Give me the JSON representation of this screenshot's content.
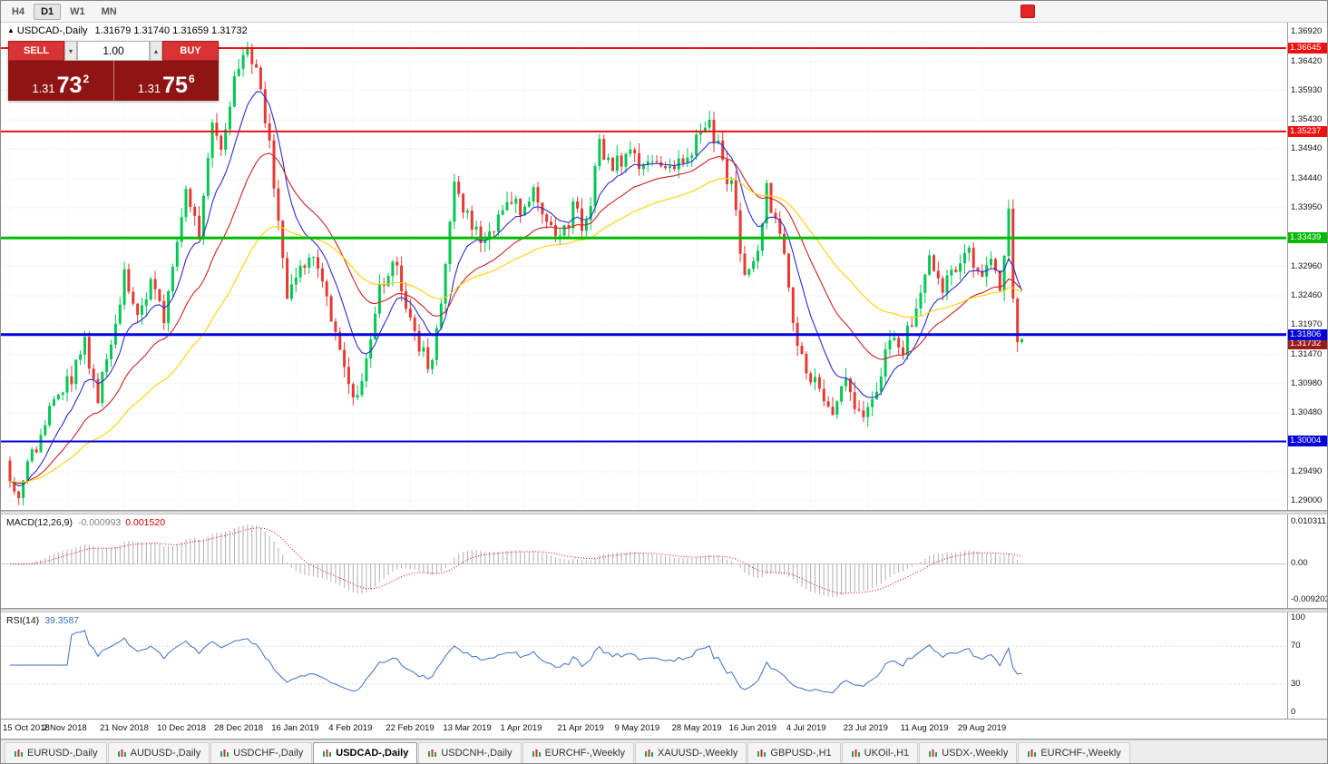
{
  "toolbar": {
    "timeframes": [
      {
        "label": "H4",
        "active": false
      },
      {
        "label": "D1",
        "active": true
      },
      {
        "label": "W1",
        "active": false
      },
      {
        "label": "MN",
        "active": false
      }
    ]
  },
  "icons": {
    "collapse_marker": "▲",
    "spin_up": "▴",
    "spin_down": "▾"
  },
  "chart_header": {
    "marker": "▲",
    "symbol": "USDCAD-,Daily",
    "ohlc": "1.31679 1.31740 1.31659 1.31732"
  },
  "trade_panel": {
    "sell_label": "SELL",
    "buy_label": "BUY",
    "volume": "1.00",
    "sell_price_prefix": "1.31",
    "sell_price_big": "73",
    "sell_price_sup": "2",
    "buy_price_prefix": "1.31",
    "buy_price_big": "75",
    "buy_price_sup": "6"
  },
  "chart_data": {
    "type": "candlestick",
    "symbol": "USDCAD-",
    "timeframe": "Daily",
    "last_ohlc": {
      "open": 1.31679,
      "high": 1.3174,
      "low": 1.31659,
      "close": 1.31732
    },
    "visible_range": {
      "max": 1.3692,
      "min": 1.29
    },
    "price_axis_ticks": [
      "1.36920",
      "1.36420",
      "1.35930",
      "1.35430",
      "1.34940",
      "1.34440",
      "1.33950",
      "1.33450",
      "1.32960",
      "1.32460",
      "1.31970",
      "1.31470",
      "1.30980",
      "1.30480",
      "1.29990",
      "1.29490",
      "1.29000"
    ],
    "horizontal_lines": [
      {
        "price": 1.36645,
        "label": "1.36645",
        "color": "#ee1111",
        "width": 2
      },
      {
        "price": 1.35237,
        "label": "1.35237",
        "color": "#ee1111",
        "width": 2
      },
      {
        "price": 1.33439,
        "label": "1.33439",
        "color": "#00bb00",
        "width": 3
      },
      {
        "price": 1.31806,
        "label": "1.31806",
        "color": "#0000dd",
        "width": 3
      },
      {
        "price": 1.30004,
        "label": "1.30004",
        "color": "#0000dd",
        "width": 2
      }
    ],
    "current_price": {
      "value": 1.31732,
      "label": "1.31732",
      "color": "#9b1b1b"
    },
    "x_labels": [
      "15 Oct 2018",
      "2 Nov 2018",
      "21 Nov 2018",
      "10 Dec 2018",
      "28 Dec 2018",
      "16 Jan 2019",
      "4 Feb 2019",
      "22 Feb 2019",
      "13 Mar 2019",
      "1 Apr 2019",
      "21 Apr 2019",
      "9 May 2019",
      "28 May 2019",
      "16 Jun 2019",
      "4 Jul 2019",
      "23 Jul 2019",
      "11 Aug 2019",
      "29 Aug 2019"
    ],
    "candles_per_label": 13,
    "num_candles": 231,
    "up_color": "#00c853",
    "down_color": "#e53935",
    "moving_averages": [
      {
        "period": 10,
        "color": "#2b2bd0"
      },
      {
        "period": 25,
        "color": "#cc2222"
      },
      {
        "period": 50,
        "color": "#ffd000"
      }
    ],
    "trend_anchors": [
      [
        0,
        1.295
      ],
      [
        2,
        1.291
      ],
      [
        6,
        1.2995
      ],
      [
        10,
        1.306
      ],
      [
        14,
        1.311
      ],
      [
        17,
        1.3165
      ],
      [
        20,
        1.308
      ],
      [
        23,
        1.315
      ],
      [
        26,
        1.3295
      ],
      [
        29,
        1.321
      ],
      [
        32,
        1.326
      ],
      [
        35,
        1.3215
      ],
      [
        38,
        1.335
      ],
      [
        40,
        1.343
      ],
      [
        43,
        1.336
      ],
      [
        46,
        1.354
      ],
      [
        48,
        1.348
      ],
      [
        51,
        1.363
      ],
      [
        54,
        1.3655
      ],
      [
        57,
        1.36
      ],
      [
        60,
        1.344
      ],
      [
        63,
        1.324
      ],
      [
        66,
        1.329
      ],
      [
        69,
        1.332
      ],
      [
        72,
        1.325
      ],
      [
        75,
        1.315
      ],
      [
        78,
        1.3072
      ],
      [
        81,
        1.313
      ],
      [
        84,
        1.325
      ],
      [
        87,
        1.331
      ],
      [
        90,
        1.323
      ],
      [
        93,
        1.316
      ],
      [
        96,
        1.3125
      ],
      [
        99,
        1.33
      ],
      [
        101,
        1.3425
      ],
      [
        104,
        1.339
      ],
      [
        107,
        1.333
      ],
      [
        110,
        1.3365
      ],
      [
        113,
        1.342
      ],
      [
        116,
        1.339
      ],
      [
        119,
        1.343
      ],
      [
        122,
        1.337
      ],
      [
        125,
        1.334
      ],
      [
        128,
        1.339
      ],
      [
        131,
        1.336
      ],
      [
        134,
        1.3495
      ],
      [
        137,
        1.346
      ],
      [
        140,
        1.349
      ],
      [
        143,
        1.346
      ],
      [
        146,
        1.3485
      ],
      [
        149,
        1.345
      ],
      [
        152,
        1.3465
      ],
      [
        155,
        1.349
      ],
      [
        158,
        1.3545
      ],
      [
        161,
        1.3495
      ],
      [
        164,
        1.343
      ],
      [
        167,
        1.3285
      ],
      [
        170,
        1.332
      ],
      [
        172,
        1.3425
      ],
      [
        175,
        1.335
      ],
      [
        178,
        1.3205
      ],
      [
        181,
        1.311
      ],
      [
        184,
        1.309
      ],
      [
        187,
        1.3058
      ],
      [
        190,
        1.309
      ],
      [
        193,
        1.3042
      ],
      [
        197,
        1.3095
      ],
      [
        200,
        1.3185
      ],
      [
        203,
        1.3155
      ],
      [
        206,
        1.323
      ],
      [
        209,
        1.33
      ],
      [
        212,
        1.3265
      ],
      [
        215,
        1.3295
      ],
      [
        218,
        1.3315
      ],
      [
        221,
        1.328
      ],
      [
        223,
        1.3305
      ],
      [
        225,
        1.327
      ],
      [
        227,
        1.338
      ],
      [
        228,
        1.3245
      ],
      [
        230,
        1.31732
      ]
    ]
  },
  "macd": {
    "label": "MACD(12,26,9)",
    "main_value": "-0.000993",
    "signal_value": "0.001520",
    "axis_top": "0.010311",
    "axis_zero": "0.00",
    "axis_bottom": "-0.0092030",
    "fast": 12,
    "slow": 26,
    "signal": 9,
    "main_color": "#b0b0b0",
    "signal_color": "#e00000"
  },
  "rsi": {
    "label": "RSI(14)",
    "value": "39.3587",
    "period": 14,
    "axis": [
      "100",
      "70",
      "30",
      "0"
    ],
    "levels": [
      70,
      30
    ],
    "line_color": "#3a6fc4"
  },
  "tabs": [
    {
      "label": "EURUSD-,Daily",
      "active": false
    },
    {
      "label": "AUDUSD-,Daily",
      "active": false
    },
    {
      "label": "USDCHF-,Daily",
      "active": false
    },
    {
      "label": "USDCAD-,Daily",
      "active": true
    },
    {
      "label": "USDCNH-,Daily",
      "active": false
    },
    {
      "label": "EURCHF-,Weekly",
      "active": false
    },
    {
      "label": "XAUUSD-,Weekly",
      "active": false
    },
    {
      "label": "GBPUSD-,H1",
      "active": false
    },
    {
      "label": "UKOil-,H1",
      "active": false
    },
    {
      "label": "USDX-,Weekly",
      "active": false
    },
    {
      "label": "EURCHF-,Weekly",
      "active": false
    }
  ]
}
